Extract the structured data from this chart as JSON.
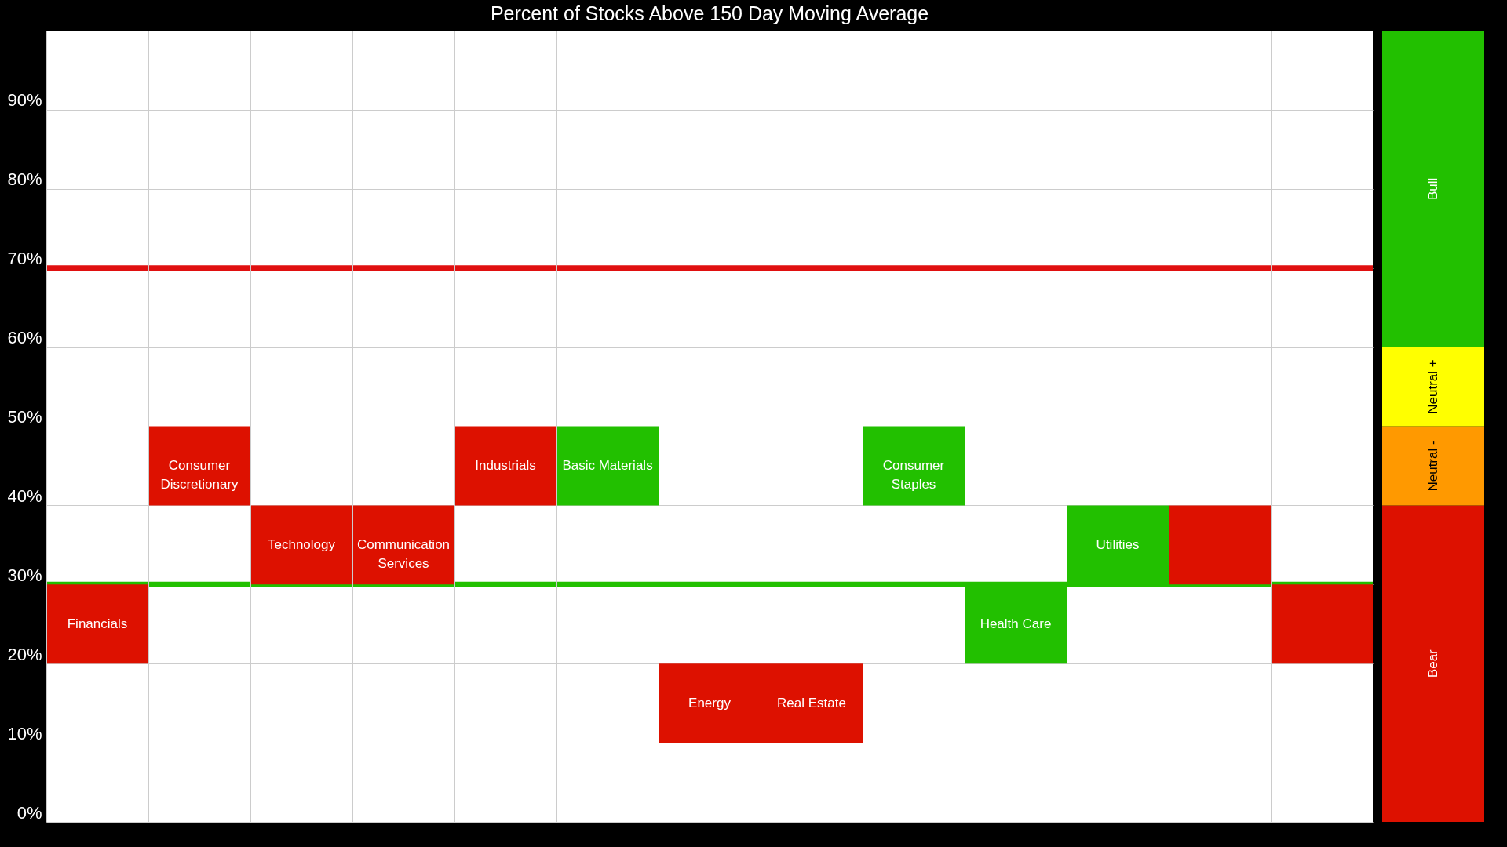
{
  "chart_data": [
    {
      "type": "bar",
      "title": "Percent of Stocks Above 150 Day Moving Average",
      "categories": [
        "Financials",
        "Consumer Discretionary",
        "Technology",
        "Communication Services",
        "Industrials",
        "Basic Materials",
        "Energy",
        "Real Estate",
        "Consumer Staples",
        "Health Care",
        "Utilities",
        null,
        null
      ],
      "values": [
        10,
        10,
        10,
        10,
        10,
        10,
        10,
        10,
        10,
        10,
        10,
        10,
        10
      ],
      "base": [
        20,
        40,
        30,
        30,
        40,
        40,
        10,
        10,
        40,
        20,
        30,
        30,
        20
      ],
      "colors": [
        "#dd1100",
        "#dd1100",
        "#dd1100",
        "#dd1100",
        "#dd1100",
        "#22c000",
        "#dd1100",
        "#dd1100",
        "#22c000",
        "#22c000",
        "#22c000",
        "#dd1100",
        "#dd1100"
      ],
      "ylim": [
        0,
        100
      ],
      "yticks": [
        {
          "value": 0,
          "label": "0%"
        },
        {
          "value": 10,
          "label": "10%"
        },
        {
          "value": 20,
          "label": "20%"
        },
        {
          "value": 30,
          "label": "30%"
        },
        {
          "value": 40,
          "label": "40%"
        },
        {
          "value": 50,
          "label": "50%"
        },
        {
          "value": 60,
          "label": "60%"
        },
        {
          "value": 70,
          "label": "70%"
        },
        {
          "value": 80,
          "label": "80%"
        },
        {
          "value": 90,
          "label": "90%"
        }
      ],
      "ref_lines": [
        {
          "axis": "y",
          "value": 70,
          "color": "#e01010"
        },
        {
          "axis": "y",
          "value": 30,
          "color": "#22c000"
        }
      ],
      "grid": true,
      "tick_labels": "y"
    },
    {
      "type": "bar",
      "stacked": true,
      "categories": [
        null
      ],
      "series": [
        {
          "name": "Bear",
          "color": "#dd1100",
          "values": [
            40
          ]
        },
        {
          "name": "Neutral -",
          "color": "#ff9900",
          "values": [
            10
          ]
        },
        {
          "name": "Neutral +",
          "color": "#ffff00",
          "values": [
            10
          ]
        },
        {
          "name": "Bull",
          "color": "#22c000",
          "values": [
            40
          ]
        }
      ],
      "ylim": [
        0,
        100
      ],
      "tick_labels": false
    }
  ]
}
